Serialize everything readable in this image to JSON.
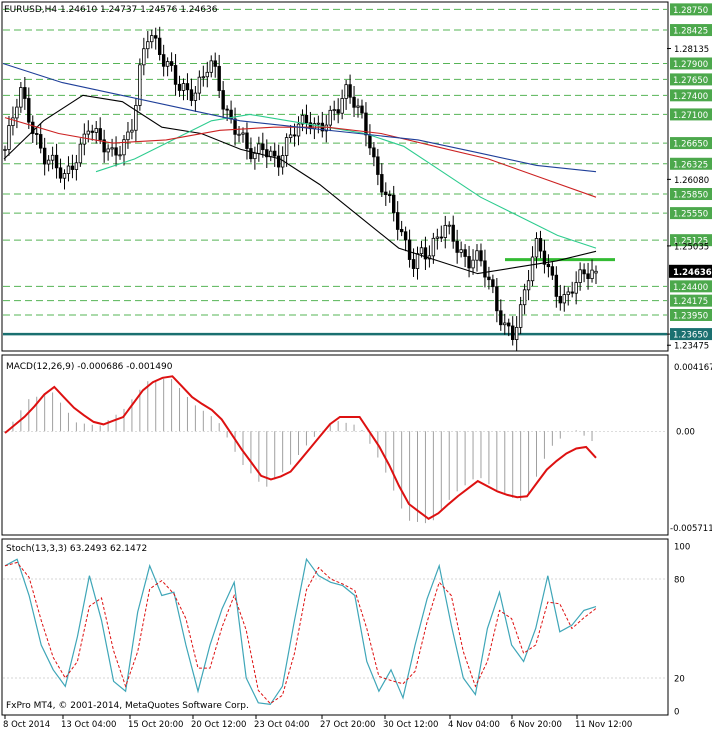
{
  "header": {
    "symbol_info": "EURUSD,H4  1.24610 1.24737 1.24576 1.24636",
    "macd_info": "MACD(12,26,9) -0.000686 -0.001490",
    "stoch_info": "Stoch(13,3,3) 63.2493 62.1472",
    "copyright": "FxPro MT4, © 2001-2014, MetaQuotes Software Corp."
  },
  "price_axis": {
    "labels": [
      "1.28750",
      "1.28425",
      "1.28135",
      "1.27900",
      "1.27650",
      "1.27400",
      "1.27100",
      "1.26650",
      "1.26325",
      "1.26080",
      "1.25850",
      "1.25550",
      "1.25125",
      "1.25035",
      "1.24636",
      "1.24400",
      "1.24175",
      "1.23950",
      "1.23650",
      "1.23475"
    ],
    "boxed": [
      "1.28750",
      "1.28425",
      "1.27900",
      "1.27650",
      "1.27400",
      "1.27100",
      "1.26650",
      "1.26325",
      "1.25850",
      "1.25550",
      "1.25125",
      "1.24400",
      "1.24175",
      "1.23950"
    ],
    "current_price": "1.24636",
    "support_level": "1.23650"
  },
  "macd_axis": {
    "top": "0.004167",
    "zero": "0.00",
    "bottom": "-0.005711"
  },
  "stoch_axis": {
    "l100": "100",
    "l80": "80",
    "l20": "20",
    "l0": "0"
  },
  "time_axis": [
    "8 Oct 2014",
    "13 Oct 04:00",
    "15 Oct 20:00",
    "20 Oct 12:00",
    "23 Oct 04:00",
    "27 Oct 20:00",
    "30 Oct 12:00",
    "4 Nov 04:00",
    "6 Nov 20:00",
    "11 Nov 12:00"
  ],
  "colors": {
    "candle": "#000000",
    "grid": "#39a839",
    "ma_black": "#000000",
    "ma_green": "#2ecc8f",
    "ma_red": "#cc2222",
    "ma_blue": "#1f3f99",
    "resistance": "#33bb33",
    "support": "#1a7070",
    "macd_hist": "#a0a0a0",
    "macd_signal": "#dd1111",
    "stoch_main": "#3fa6b8",
    "stoch_signal": "#dd1111"
  },
  "chart_data": [
    {
      "type": "candlestick",
      "title": "EURUSD,H4",
      "ylim": [
        1.234,
        1.2885
      ],
      "ohlc_last": {
        "open": 1.2461,
        "high": 1.24737,
        "low": 1.24576,
        "close": 1.24636
      },
      "close_path": [
        1.2655,
        1.27,
        1.2745,
        1.271,
        1.268,
        1.265,
        1.264,
        1.262,
        1.2605,
        1.263,
        1.266,
        1.27,
        1.268,
        1.266,
        1.264,
        1.265,
        1.267,
        1.271,
        1.28,
        1.284,
        1.281,
        1.279,
        1.278,
        1.276,
        1.275,
        1.274,
        1.276,
        1.279,
        1.277,
        1.272,
        1.27,
        1.268,
        1.265,
        1.264,
        1.266,
        1.265,
        1.264,
        1.266,
        1.268,
        1.269,
        1.27,
        1.269,
        1.27,
        1.271,
        1.272,
        1.274,
        1.273,
        1.271,
        1.268,
        1.262,
        1.259,
        1.256,
        1.253,
        1.25,
        1.248,
        1.25,
        1.249,
        1.251,
        1.253,
        1.252,
        1.25,
        1.248,
        1.249,
        1.247,
        1.244,
        1.24,
        1.238,
        1.237,
        1.24,
        1.245,
        1.25,
        1.249,
        1.246,
        1.243,
        1.242,
        1.244,
        1.245,
        1.246,
        1.2464
      ],
      "series": [
        {
          "name": "MA black",
          "values": [
            1.264,
            1.27,
            1.274,
            1.273,
            1.269,
            1.268,
            1.2655,
            1.264,
            1.26,
            1.255,
            1.25,
            1.248,
            1.246,
            1.247,
            1.248,
            1.2495
          ]
        },
        {
          "name": "MA green",
          "values": [
            1.262,
            1.264,
            1.267,
            1.27,
            1.271,
            1.27,
            1.269,
            1.268,
            1.266,
            1.262,
            1.258,
            1.255,
            1.252,
            1.25
          ]
        },
        {
          "name": "MA red",
          "values": [
            1.2705,
            1.268,
            1.2665,
            1.267,
            1.2685,
            1.269,
            1.269,
            1.268,
            1.266,
            1.264,
            1.261,
            1.258
          ]
        },
        {
          "name": "MA blue",
          "values": [
            1.279,
            1.276,
            1.274,
            1.272,
            1.27,
            1.269,
            1.268,
            1.267,
            1.265,
            1.263,
            1.262
          ]
        }
      ],
      "levels": {
        "resistance": 1.2482,
        "support": 1.2365
      }
    },
    {
      "type": "bar",
      "title": "MACD(12,26,9)",
      "ylim": [
        -0.005711,
        0.004167
      ],
      "main": -0.000686,
      "signal": -0.00149
    },
    {
      "type": "line",
      "title": "Stoch(13,3,3)",
      "ylim": [
        0,
        100
      ],
      "main": 63.2493,
      "signal": 62.1472
    }
  ]
}
